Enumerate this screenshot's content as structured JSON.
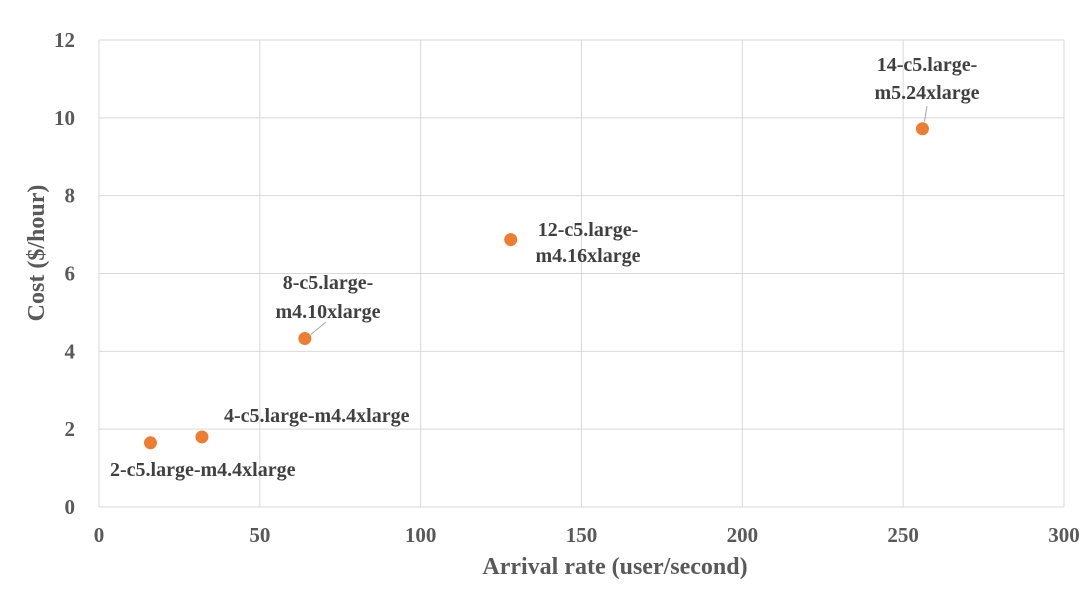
{
  "chart_data": {
    "type": "scatter",
    "title": "",
    "xlabel": "Arrival rate (user/second)",
    "ylabel": "Cost ($/hour)",
    "xlim": [
      0,
      300
    ],
    "ylim": [
      0,
      12
    ],
    "xticks": [
      0,
      50,
      100,
      150,
      200,
      250,
      300
    ],
    "yticks": [
      0,
      2,
      4,
      6,
      8,
      10,
      12
    ],
    "grid": true,
    "legend": "none",
    "marker_color": "#ED7D31",
    "points": [
      {
        "x": 16,
        "y": 1.65,
        "label": "2-c5.large-m4.4xlarge"
      },
      {
        "x": 32,
        "y": 1.8,
        "label": "4-c5.large-m4.4xlarge"
      },
      {
        "x": 64,
        "y": 4.33,
        "label_lines": [
          "8-c5.large-",
          "m4.10xlarge"
        ]
      },
      {
        "x": 128,
        "y": 6.87,
        "label_lines": [
          "12-c5.large-",
          "m4.16xlarge"
        ]
      },
      {
        "x": 256,
        "y": 9.72,
        "label_lines": [
          "14-c5.large-",
          "m5.24xlarge"
        ]
      }
    ]
  }
}
